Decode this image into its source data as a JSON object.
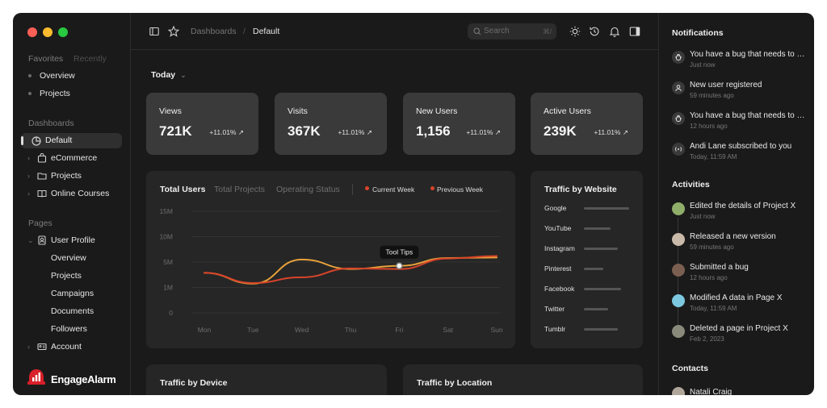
{
  "sidebar": {
    "tabs": [
      "Favorites",
      "Recently"
    ],
    "favorites": [
      "Overview",
      "Projects"
    ],
    "dashboards_title": "Dashboards",
    "dashboards": [
      "Default",
      "eCommerce",
      "Projects",
      "Online Courses"
    ],
    "pages_title": "Pages",
    "user_profile": "User Profile",
    "user_profile_items": [
      "Overview",
      "Projects",
      "Campaigns",
      "Documents",
      "Followers"
    ],
    "account": "Account",
    "logo_text": "EngageAlarm"
  },
  "topbar": {
    "breadcrumb_root": "Dashboards",
    "breadcrumb_sep": "/",
    "breadcrumb_current": "Default",
    "search_placeholder": "Search",
    "search_shortcut": "⌘/"
  },
  "filter": {
    "label": "Today"
  },
  "stats": [
    {
      "title": "Views",
      "value": "721K",
      "change": "+11.01%"
    },
    {
      "title": "Visits",
      "value": "367K",
      "change": "+11.01%"
    },
    {
      "title": "New Users",
      "value": "1,156",
      "change": "+11.01%"
    },
    {
      "title": "Active Users",
      "value": "239K",
      "change": "+11.01%"
    }
  ],
  "users_chart": {
    "tabs": [
      "Total Users",
      "Total Projects",
      "Operating Status"
    ],
    "legend": [
      "Current Week",
      "Previous Week"
    ],
    "tooltip": "Tool Tips",
    "colors": {
      "current": "#e8a23a",
      "previous": "#d8442a"
    }
  },
  "traffic_website": {
    "title": "Traffic by Website",
    "sites": [
      {
        "name": "Google",
        "level": 0.85
      },
      {
        "name": "YouTube",
        "level": 0.5
      },
      {
        "name": "Instagram",
        "level": 0.64
      },
      {
        "name": "Pinterest",
        "level": 0.37
      },
      {
        "name": "Facebook",
        "level": 0.7
      },
      {
        "name": "Twitter",
        "level": 0.45
      },
      {
        "name": "Tumblr",
        "level": 0.63
      }
    ]
  },
  "bottom_cards": [
    "Traffic by Device",
    "Traffic by Location"
  ],
  "notifications": {
    "title": "Notifications",
    "items": [
      {
        "text": "You have a bug that needs to be fixed",
        "time": "Just now",
        "icon": "bug-icon"
      },
      {
        "text": "New user registered",
        "time": "59 minutes ago",
        "icon": "user-icon"
      },
      {
        "text": "You have a bug that needs to be fixed",
        "time": "12 hours ago",
        "icon": "bug-icon"
      },
      {
        "text": "Andi Lane subscribed to you",
        "time": "Today, 11:59 AM",
        "icon": "broadcast-icon"
      }
    ]
  },
  "activities": {
    "title": "Activities",
    "items": [
      {
        "text": "Edited the details of Project X",
        "time": "Just now"
      },
      {
        "text": "Released a new version",
        "time": "59 minutes ago"
      },
      {
        "text": "Submitted a bug",
        "time": "12 hours ago"
      },
      {
        "text": "Modified A data in Page X",
        "time": "Today, 11:59 AM"
      },
      {
        "text": "Deleted a page in Project X",
        "time": "Feb 2, 2023"
      }
    ]
  },
  "contacts": {
    "title": "Contacts",
    "items": [
      "Natali Craig"
    ]
  },
  "chart_data": {
    "type": "line",
    "title": "",
    "xlabel": "",
    "ylabel": "",
    "categories": [
      "Mon",
      "Tue",
      "Wed",
      "Thu",
      "Fri",
      "Sat",
      "Sun"
    ],
    "y_ticks": [
      "0",
      "1M",
      "5M",
      "10M",
      "15M"
    ],
    "ylim": [
      0,
      15
    ],
    "series": [
      {
        "name": "Current Week",
        "values": [
          3.3,
          1.6,
          5.5,
          3.9,
          4.4,
          5.8,
          5.9
        ]
      },
      {
        "name": "Previous Week",
        "values": [
          3.3,
          1.7,
          2.6,
          4.0,
          3.9,
          5.7,
          6.2
        ]
      }
    ],
    "legend_position": "top",
    "grid": true
  }
}
